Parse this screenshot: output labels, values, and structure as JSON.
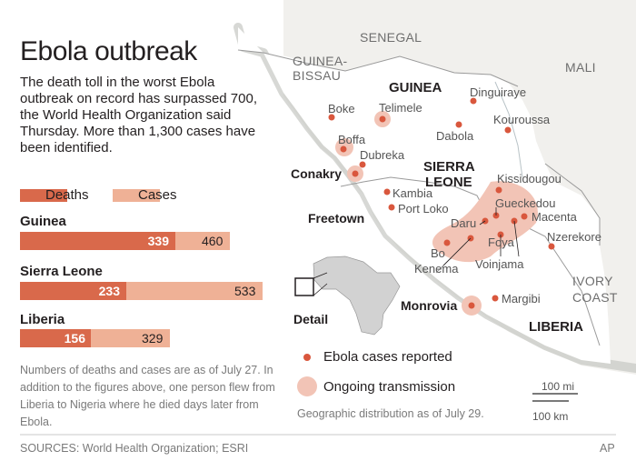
{
  "title": "Ebola outbreak",
  "intro": "The death toll in the worst Ebola outbreak on record has surpassed 700, the World Health Organization said Thursday. More than 1,300 cases have been identified.",
  "legend": {
    "deaths": "Deaths",
    "cases": "Cases"
  },
  "colors": {
    "deaths": "#d9694b",
    "cases": "#efb196",
    "land": "#ffffff",
    "neighbor": "#f1f0ed",
    "sea": "#cfd6d8",
    "dot": "#d9573d",
    "transmission": "#f2c4b6"
  },
  "countries": [
    {
      "name": "Guinea",
      "deaths": "339",
      "cases": "460"
    },
    {
      "name": "Sierra Leone",
      "deaths": "233",
      "cases": "533"
    },
    {
      "name": "Liberia",
      "deaths": "156",
      "cases": "329"
    }
  ],
  "note": "Numbers of deaths and cases are as of July 27. In addition to the figures above, one person flew from Liberia to Nigeria where he died days later from Ebola.",
  "sources": "SOURCES: World Health Organization; ESRI",
  "credit": "AP",
  "map": {
    "regions": {
      "senegal": "SENEGAL",
      "guinea_bissau_1": "GUINEA-",
      "guinea_bissau_2": "BISSAU",
      "mali": "MALI",
      "ivory_1": "IVORY",
      "ivory_2": "COAST",
      "guinea": "GUINEA",
      "sierra_1": "SIERRA",
      "sierra_2": "LEONE",
      "liberia": "LIBERIA"
    },
    "cities": {
      "boke": "Boke",
      "telimele": "Telimele",
      "dinguiraye": "Dinguiraye",
      "kouroussa": "Kouroussa",
      "boffa": "Boffa",
      "dubreka": "Dubreka",
      "dabola": "Dabola",
      "conakry": "Conakry",
      "kissidougou": "Kissidougou",
      "kambia": "Kambia",
      "gueckedou": "Gueckedou",
      "freetown": "Freetown",
      "port_loko": "Port Loko",
      "daru": "Daru",
      "macenta": "Macenta",
      "foya": "Foya",
      "bo": "Bo",
      "nzerekore": "Nzerekore",
      "kenema": "Kenema",
      "voinjama": "Voinjama",
      "monrovia": "Monrovia",
      "margibi": "Margibi"
    },
    "detail": "Detail",
    "legend_reported": "Ebola cases reported",
    "legend_transmission": "Ongoing transmission",
    "scale_mi": "100 mi",
    "scale_km": "100 km",
    "distribution": "Geographic distribution as of July 29."
  }
}
